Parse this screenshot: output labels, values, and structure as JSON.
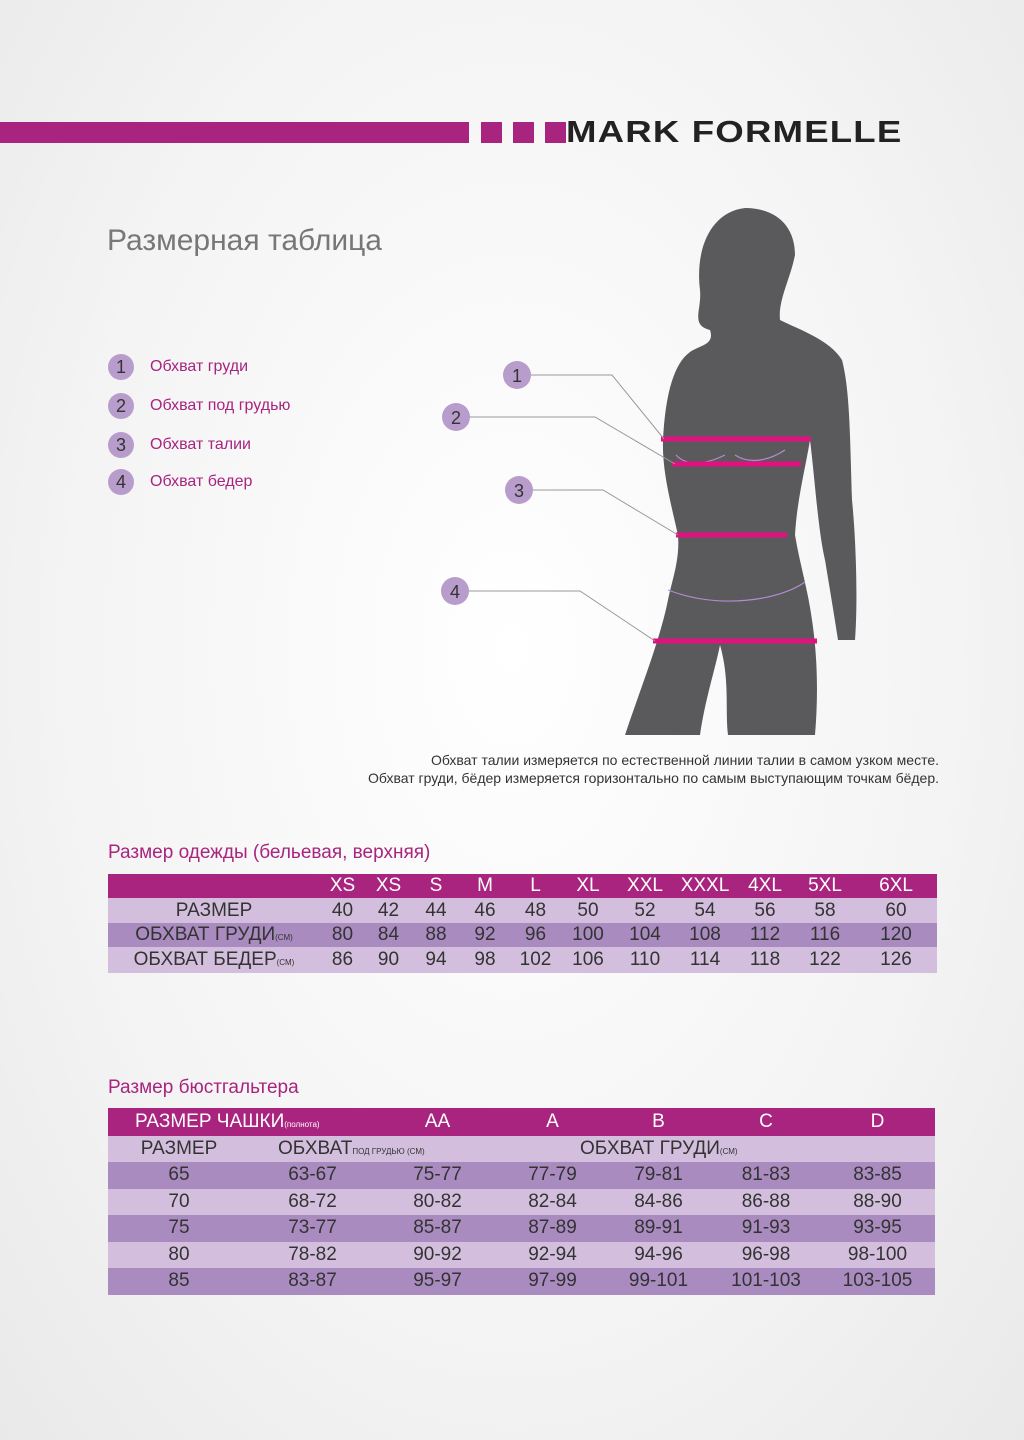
{
  "brand": "MARK FORMELLE",
  "colors": {
    "accent": "#a8247f",
    "row_light": "#d3bfdd",
    "row_dark": "#a98bbf",
    "marker": "#b89ccb"
  },
  "title": "Размерная таблица",
  "legend": [
    {
      "n": "1",
      "label": "Обхват груди"
    },
    {
      "n": "2",
      "label": "Обхват под грудью"
    },
    {
      "n": "3",
      "label": "Обхват талии"
    },
    {
      "n": "4",
      "label": "Обхват бедер"
    }
  ],
  "notes": [
    "Обхват талии измеряется по естественной линии талии в самом узком месте.",
    "Обхват груди, бёдер измеряется горизонтально по самым выступающим точкам бёдер."
  ],
  "clothing": {
    "title": "Размер одежды (бельевая, верхняя)",
    "headers": [
      "XS",
      "XS",
      "S",
      "M",
      "L",
      "XL",
      "XXL",
      "XXXL",
      "4XL",
      "5XL",
      "6XL"
    ],
    "rows": [
      {
        "label": "РАЗМЕР",
        "unit": "",
        "values": [
          "40",
          "42",
          "44",
          "46",
          "48",
          "50",
          "52",
          "54",
          "56",
          "58",
          "60"
        ]
      },
      {
        "label": "ОБХВАТ ГРУДИ",
        "unit": "(СМ)",
        "values": [
          "80",
          "84",
          "88",
          "92",
          "96",
          "100",
          "104",
          "108",
          "112",
          "116",
          "120"
        ]
      },
      {
        "label": "ОБХВАТ БЕДЕР",
        "unit": "(СМ)",
        "values": [
          "86",
          "90",
          "94",
          "98",
          "102",
          "106",
          "110",
          "114",
          "118",
          "122",
          "126"
        ]
      }
    ]
  },
  "bra": {
    "title": "Размер бюстгальтера",
    "cup_label": "РАЗМЕР ЧАШКИ",
    "cup_sub": "(полнота)",
    "cups": [
      "AA",
      "A",
      "B",
      "C",
      "D"
    ],
    "size_label": "РАЗМЕР",
    "under_label": "ОБХВАТ",
    "under_sub": "ПОД ГРУДЬЮ (СМ)",
    "chest_label": "ОБХВАТ ГРУДИ",
    "chest_sub": "(СМ)",
    "rows": [
      [
        "65",
        "63-67",
        "75-77",
        "77-79",
        "79-81",
        "81-83",
        "83-85"
      ],
      [
        "70",
        "68-72",
        "80-82",
        "82-84",
        "84-86",
        "86-88",
        "88-90"
      ],
      [
        "75",
        "73-77",
        "85-87",
        "87-89",
        "89-91",
        "91-93",
        "93-95"
      ],
      [
        "80",
        "78-82",
        "90-92",
        "92-94",
        "94-96",
        "96-98",
        "98-100"
      ],
      [
        "85",
        "83-87",
        "95-97",
        "97-99",
        "99-101",
        "101-103",
        "103-105"
      ]
    ]
  }
}
